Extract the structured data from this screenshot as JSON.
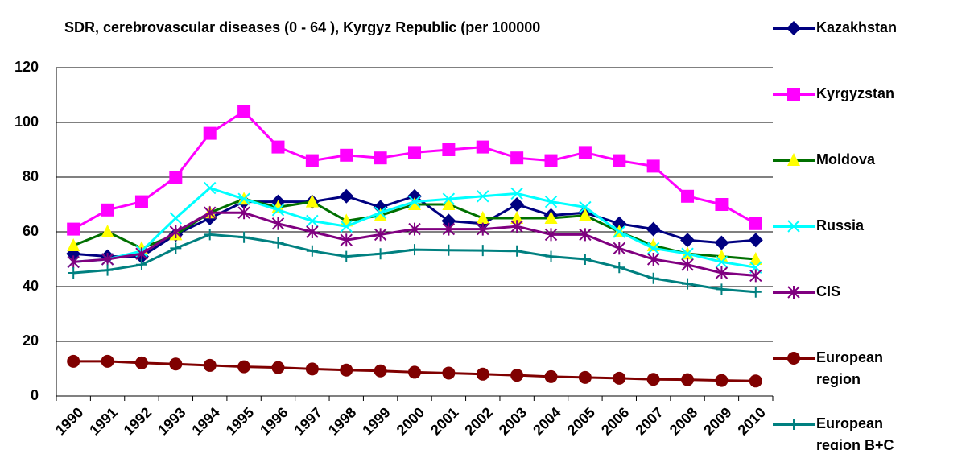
{
  "chart_data": {
    "type": "line",
    "title": "SDR, cerebrovascular diseases (0 - 64 ), Kyrgyz Republic (per 100000",
    "categories": [
      "1990",
      "1991",
      "1992",
      "1993",
      "1994",
      "1995",
      "1996",
      "1997",
      "1998",
      "1999",
      "2000",
      "2001",
      "2002",
      "2003",
      "2004",
      "2005",
      "2006",
      "2007",
      "2008",
      "2009",
      "2010"
    ],
    "ylim": [
      0,
      120
    ],
    "yticks": [
      0,
      20,
      40,
      60,
      80,
      100,
      120
    ],
    "grid": true,
    "legend": "right",
    "series": [
      {
        "name": "Kazakhstan",
        "color": "#000080",
        "marker": "diamond",
        "values": [
          52,
          51,
          51,
          59,
          65,
          71,
          71,
          71,
          73,
          69,
          73,
          64,
          63,
          70,
          66,
          67,
          63,
          61,
          57,
          56,
          57
        ]
      },
      {
        "name": "Kyrgyzstan",
        "color": "#ff00ff",
        "marker": "square",
        "values": [
          61,
          68,
          71,
          80,
          96,
          104,
          91,
          86,
          88,
          87,
          89,
          90,
          91,
          87,
          86,
          89,
          86,
          84,
          73,
          70,
          63
        ]
      },
      {
        "name": "Moldova",
        "color": "#007000",
        "marker": "triangle",
        "marker_color": "#ffff00",
        "values": [
          55,
          60,
          54,
          59,
          67,
          72,
          69,
          71,
          64,
          66,
          70,
          70,
          65,
          65,
          65,
          66,
          60,
          55,
          52,
          51,
          50
        ]
      },
      {
        "name": "Russia",
        "color": "#00ffff",
        "marker": "x",
        "values": [
          49,
          50,
          53,
          65,
          76,
          72,
          68,
          64,
          62,
          67,
          71,
          72,
          73,
          74,
          71,
          69,
          60,
          54,
          52,
          49,
          47
        ]
      },
      {
        "name": "CIS",
        "color": "#800080",
        "marker": "asterisk",
        "values": [
          49,
          50,
          52,
          60,
          67,
          67,
          63,
          60,
          57,
          59,
          61,
          61,
          61,
          62,
          59,
          59,
          54,
          50,
          48,
          45,
          44
        ]
      },
      {
        "name": "European region",
        "color": "#800000",
        "marker": "circle",
        "values": [
          12.7,
          12.7,
          12.1,
          11.7,
          11.2,
          10.7,
          10.4,
          9.9,
          9.5,
          9.2,
          8.7,
          8.4,
          8.0,
          7.6,
          7.1,
          6.8,
          6.5,
          6.1,
          6.0,
          5.7,
          5.5
        ]
      },
      {
        "name": "European region B+C",
        "color": "#008080",
        "marker": "plus",
        "values": [
          45,
          46,
          48,
          54,
          59,
          58,
          56,
          53,
          51,
          52,
          53.5,
          53.3,
          53.2,
          53,
          51,
          50,
          47,
          43,
          41,
          39,
          38
        ]
      }
    ]
  }
}
